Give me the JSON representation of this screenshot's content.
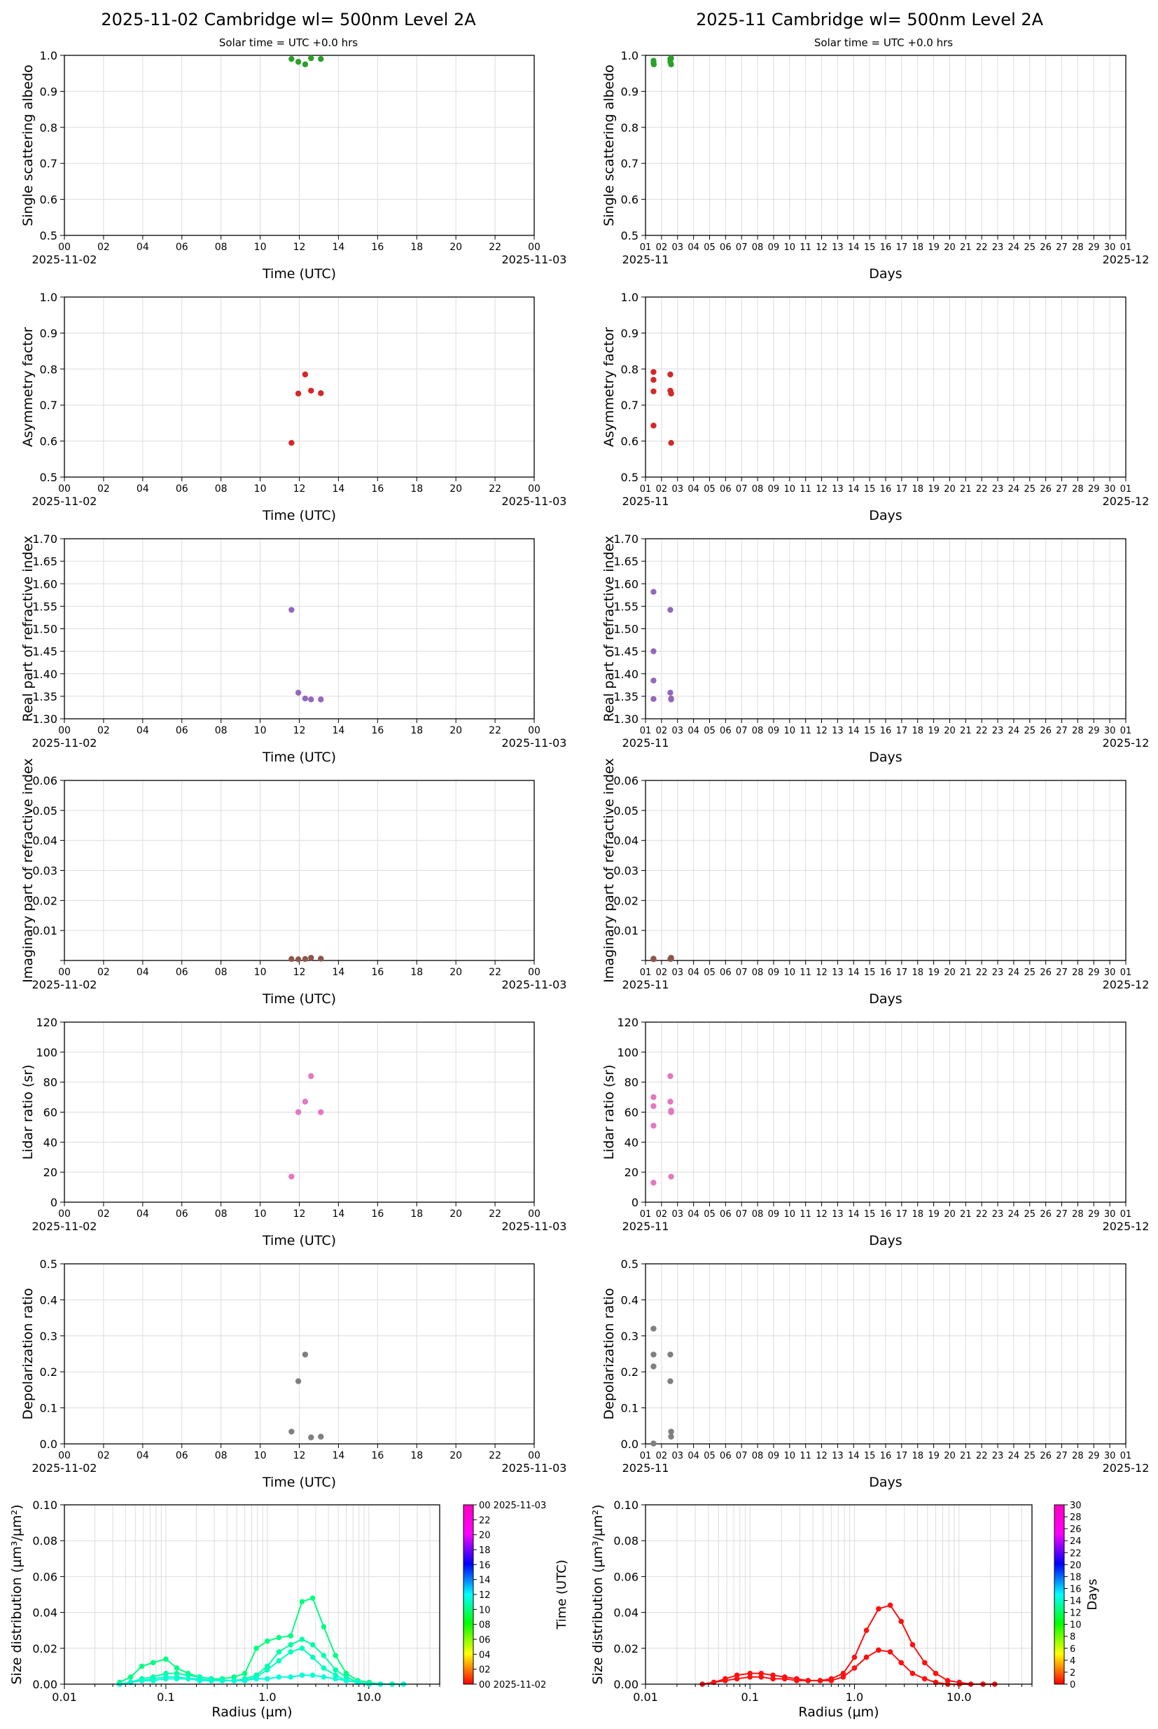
{
  "titles": {
    "left": "2025-11-02  Cambridge  wl= 500nm  Level 2A",
    "right": "2025-11  Cambridge  wl= 500nm  Level 2A",
    "subtitle": "Solar time = UTC +0.0 hrs"
  },
  "colors": {
    "green": "#2ca02c",
    "red": "#d62728",
    "purple": "#9467bd",
    "brown": "#8c564b",
    "pink": "#e377c2",
    "gray": "#7f7f7f",
    "grid": "#dcdcdc"
  },
  "axes_text": {
    "daily_xlabel": "Time (UTC)",
    "monthly_xlabel": "Days",
    "daily_ticks": [
      "00",
      "02",
      "04",
      "06",
      "08",
      "10",
      "12",
      "14",
      "16",
      "18",
      "20",
      "22",
      "00"
    ],
    "daily_start": "2025-11-02",
    "daily_end": "2025-11-03",
    "monthly_ticks": [
      "01",
      "02",
      "03",
      "04",
      "05",
      "06",
      "07",
      "08",
      "09",
      "10",
      "11",
      "12",
      "13",
      "14",
      "15",
      "16",
      "17",
      "18",
      "19",
      "20",
      "21",
      "22",
      "23",
      "24",
      "25",
      "26",
      "27",
      "28",
      "29",
      "30",
      "01"
    ],
    "monthly_start": "2025-11",
    "monthly_end": "2025-12"
  },
  "chart_data": [
    {
      "type": "scatter",
      "panel": "daily",
      "ylabel": "Single scattering albedo",
      "ylim": [
        0.5,
        1.0
      ],
      "yticks": [
        "0.5",
        "0.6",
        "0.7",
        "0.8",
        "0.9",
        "1.0"
      ],
      "color": "green",
      "x": [
        11.6,
        11.95,
        12.3,
        12.6,
        13.1
      ],
      "y": [
        0.99,
        0.982,
        0.975,
        0.992,
        0.99
      ]
    },
    {
      "type": "scatter",
      "panel": "monthly",
      "ylabel": "Single scattering albedo",
      "ylim": [
        0.5,
        1.0
      ],
      "yticks": [
        "0.5",
        "0.6",
        "0.7",
        "0.8",
        "0.9",
        "1.0"
      ],
      "color": "green",
      "x": [
        1.5,
        1.5,
        1.52,
        2.55,
        2.55,
        2.6,
        2.6
      ],
      "y": [
        0.985,
        0.978,
        0.975,
        0.99,
        0.982,
        0.975,
        0.992
      ]
    },
    {
      "type": "scatter",
      "panel": "daily",
      "ylabel": "Asymmetry factor",
      "ylim": [
        0.5,
        1.0
      ],
      "yticks": [
        "0.5",
        "0.6",
        "0.7",
        "0.8",
        "0.9",
        "1.0"
      ],
      "color": "red",
      "x": [
        11.6,
        11.95,
        12.3,
        12.6,
        13.1
      ],
      "y": [
        0.595,
        0.732,
        0.785,
        0.74,
        0.733
      ]
    },
    {
      "type": "scatter",
      "panel": "monthly",
      "ylabel": "Asymmetry factor",
      "ylim": [
        0.5,
        1.0
      ],
      "yticks": [
        "0.5",
        "0.6",
        "0.7",
        "0.8",
        "0.9",
        "1.0"
      ],
      "color": "red",
      "x": [
        1.5,
        1.5,
        1.5,
        1.5,
        2.55,
        2.55,
        2.6,
        2.6,
        2.6
      ],
      "y": [
        0.792,
        0.77,
        0.738,
        0.643,
        0.785,
        0.74,
        0.733,
        0.732,
        0.595
      ]
    },
    {
      "type": "scatter",
      "panel": "daily",
      "ylabel": "Real part of refractive index",
      "ylim": [
        1.3,
        1.7
      ],
      "yticks": [
        "1.30",
        "1.35",
        "1.40",
        "1.45",
        "1.50",
        "1.55",
        "1.60",
        "1.65",
        "1.70"
      ],
      "color": "purple",
      "x": [
        11.6,
        11.95,
        12.3,
        12.6,
        13.1
      ],
      "y": [
        1.542,
        1.358,
        1.345,
        1.343,
        1.343
      ]
    },
    {
      "type": "scatter",
      "panel": "monthly",
      "ylabel": "Real part of refractive index",
      "ylim": [
        1.3,
        1.7
      ],
      "yticks": [
        "1.30",
        "1.35",
        "1.40",
        "1.45",
        "1.50",
        "1.55",
        "1.60",
        "1.65",
        "1.70"
      ],
      "color": "purple",
      "x": [
        1.5,
        1.5,
        1.5,
        1.5,
        2.55,
        2.55,
        2.6,
        2.6
      ],
      "y": [
        1.582,
        1.45,
        1.385,
        1.344,
        1.542,
        1.358,
        1.345,
        1.343
      ]
    },
    {
      "type": "scatter",
      "panel": "daily",
      "ylabel": "Imaginary part of refractive index",
      "ylim": [
        0.0,
        0.06
      ],
      "yticks": [
        "",
        "0.01",
        "0.02",
        "0.03",
        "0.04",
        "0.05",
        "0.06"
      ],
      "color": "brown",
      "x": [
        11.6,
        11.95,
        12.3,
        12.6,
        13.1
      ],
      "y": [
        0.0005,
        0.0004,
        0.0005,
        0.0009,
        0.0006
      ]
    },
    {
      "type": "scatter",
      "panel": "monthly",
      "ylabel": "Imaginary part of refractive index",
      "ylim": [
        0.0,
        0.06
      ],
      "yticks": [
        "",
        "0.01",
        "0.02",
        "0.03",
        "0.04",
        "0.05",
        "0.06"
      ],
      "color": "brown",
      "x": [
        1.5,
        1.5,
        2.55,
        2.6,
        2.6
      ],
      "y": [
        0.0006,
        0.0004,
        0.0005,
        0.0009,
        0.0006
      ]
    },
    {
      "type": "scatter",
      "panel": "daily",
      "ylabel": "Lidar ratio (sr)",
      "ylim": [
        0,
        120
      ],
      "yticks": [
        "0",
        "20",
        "40",
        "60",
        "80",
        "100",
        "120"
      ],
      "color": "pink",
      "x": [
        11.6,
        11.95,
        12.3,
        12.6,
        13.1
      ],
      "y": [
        17,
        60,
        67,
        84,
        60
      ]
    },
    {
      "type": "scatter",
      "panel": "monthly",
      "ylabel": "Lidar ratio (sr)",
      "ylim": [
        0,
        120
      ],
      "yticks": [
        "0",
        "20",
        "40",
        "60",
        "80",
        "100",
        "120"
      ],
      "color": "pink",
      "x": [
        1.5,
        1.5,
        1.5,
        1.5,
        2.55,
        2.55,
        2.6,
        2.6,
        2.6
      ],
      "y": [
        70,
        64,
        51,
        13,
        84,
        67,
        61,
        60,
        17
      ]
    },
    {
      "type": "scatter",
      "panel": "daily",
      "ylabel": "Depolarization ratio",
      "ylim": [
        0.0,
        0.5
      ],
      "yticks": [
        "0.0",
        "0.1",
        "0.2",
        "0.3",
        "0.4",
        "0.5"
      ],
      "color": "gray",
      "x": [
        11.6,
        11.95,
        12.3,
        12.6,
        13.1
      ],
      "y": [
        0.034,
        0.174,
        0.248,
        0.018,
        0.02
      ]
    },
    {
      "type": "scatter",
      "panel": "monthly",
      "ylabel": "Depolarization ratio",
      "ylim": [
        0.0,
        0.5
      ],
      "yticks": [
        "0.0",
        "0.1",
        "0.2",
        "0.3",
        "0.4",
        "0.5"
      ],
      "color": "gray",
      "x": [
        1.5,
        1.5,
        1.5,
        1.5,
        2.55,
        2.55,
        2.6,
        2.6
      ],
      "y": [
        0.32,
        0.248,
        0.215,
        0.001,
        0.248,
        0.174,
        0.034,
        0.02
      ]
    },
    {
      "type": "line",
      "panel": "sizedist-daily",
      "ylabel": "Size distribution (µm³/µm²)",
      "xlabel": "Radius (µm)",
      "xscale": "log",
      "xlim": [
        0.01,
        50
      ],
      "ylim": [
        0,
        0.1
      ],
      "xticks": [
        "0.01",
        "0.1",
        "1.0",
        "10.0"
      ],
      "yticks": [
        "0.00",
        "0.02",
        "0.04",
        "0.06",
        "0.08",
        "0.10"
      ],
      "radius": [
        0.035,
        0.045,
        0.058,
        0.075,
        0.1,
        0.128,
        0.166,
        0.215,
        0.28,
        0.36,
        0.47,
        0.6,
        0.78,
        1.0,
        1.3,
        1.7,
        2.2,
        2.8,
        3.6,
        4.7,
        6.0,
        7.8,
        10.1,
        13.0,
        17.0,
        22.0
      ],
      "series": [
        {
          "color": "#00ff7f",
          "values": [
            0.001,
            0.004,
            0.01,
            0.012,
            0.014,
            0.009,
            0.006,
            0.004,
            0.003,
            0.003,
            0.004,
            0.006,
            0.02,
            0.024,
            0.026,
            0.027,
            0.046,
            0.048,
            0.032,
            0.016,
            0.006,
            0.002,
            0.001,
            0.0,
            0.0,
            0.0
          ]
        },
        {
          "color": "#00ffa5",
          "values": [
            0.0,
            0.001,
            0.003,
            0.004,
            0.006,
            0.006,
            0.005,
            0.004,
            0.003,
            0.002,
            0.002,
            0.003,
            0.005,
            0.01,
            0.018,
            0.022,
            0.025,
            0.022,
            0.016,
            0.008,
            0.004,
            0.001,
            0.0,
            0.0,
            0.0,
            0.0
          ]
        },
        {
          "color": "#00ffbf",
          "values": [
            0.0,
            0.001,
            0.002,
            0.003,
            0.004,
            0.004,
            0.003,
            0.003,
            0.002,
            0.002,
            0.002,
            0.002,
            0.004,
            0.008,
            0.013,
            0.018,
            0.02,
            0.015,
            0.009,
            0.005,
            0.002,
            0.001,
            0.0,
            0.0,
            0.0,
            0.0
          ]
        },
        {
          "color": "#00ffd9",
          "values": [
            0.0,
            0.001,
            0.002,
            0.002,
            0.003,
            0.003,
            0.003,
            0.002,
            0.002,
            0.002,
            0.002,
            0.002,
            0.003,
            0.003,
            0.004,
            0.004,
            0.005,
            0.005,
            0.004,
            0.003,
            0.002,
            0.001,
            0.0,
            0.0,
            0.0,
            0.0
          ]
        }
      ]
    },
    {
      "type": "line",
      "panel": "sizedist-monthly",
      "ylabel": "Size distribution (µm³/µm²)",
      "xlabel": "Radius (µm)",
      "xscale": "log",
      "xlim": [
        0.01,
        50
      ],
      "ylim": [
        0,
        0.1
      ],
      "xticks": [
        "0.01",
        "0.1",
        "1.0",
        "10.0"
      ],
      "yticks": [
        "0.00",
        "0.02",
        "0.04",
        "0.06",
        "0.08",
        "0.10"
      ],
      "radius": [
        0.035,
        0.045,
        0.058,
        0.075,
        0.1,
        0.128,
        0.166,
        0.215,
        0.28,
        0.36,
        0.47,
        0.6,
        0.78,
        1.0,
        1.3,
        1.7,
        2.2,
        2.8,
        3.6,
        4.7,
        6.0,
        7.8,
        10.1,
        13.0,
        17.0,
        22.0
      ],
      "series": [
        {
          "color": "#ff1010",
          "values": [
            0.0,
            0.001,
            0.003,
            0.005,
            0.006,
            0.006,
            0.005,
            0.004,
            0.003,
            0.002,
            0.002,
            0.003,
            0.006,
            0.015,
            0.03,
            0.042,
            0.044,
            0.035,
            0.022,
            0.012,
            0.006,
            0.002,
            0.001,
            0.0,
            0.0,
            0.0
          ]
        },
        {
          "color": "#ff1010",
          "values": [
            0.0,
            0.001,
            0.002,
            0.003,
            0.004,
            0.004,
            0.003,
            0.003,
            0.002,
            0.002,
            0.002,
            0.002,
            0.004,
            0.009,
            0.015,
            0.019,
            0.018,
            0.012,
            0.006,
            0.003,
            0.001,
            0.0,
            0.0,
            0.0,
            0.0,
            0.0
          ]
        }
      ]
    }
  ],
  "colorbars": {
    "daily": {
      "label": "Time (UTC)",
      "ticks": [
        "00 2025-11-02",
        "02",
        "04",
        "06",
        "08",
        "10",
        "12",
        "14",
        "16",
        "18",
        "20",
        "22",
        "00 2025-11-03"
      ]
    },
    "monthly": {
      "label": "Days",
      "ticks": [
        "0",
        "2",
        "4",
        "6",
        "8",
        "10",
        "12",
        "14",
        "16",
        "18",
        "20",
        "22",
        "24",
        "26",
        "28",
        "30"
      ]
    }
  }
}
